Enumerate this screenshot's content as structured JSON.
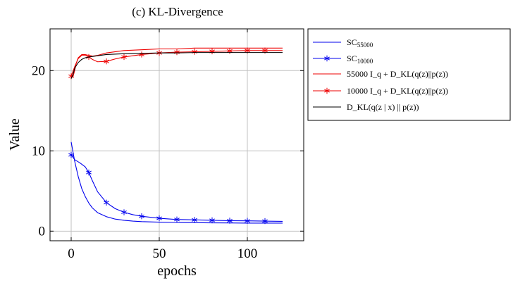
{
  "chart_data": {
    "type": "line",
    "title": "(c) KL-Divergence",
    "xlabel": "epochs",
    "ylabel": "Value",
    "xlim": [
      -12,
      132
    ],
    "ylim": [
      -1.2,
      25.2
    ],
    "xticks": [
      0,
      50,
      100
    ],
    "yticks": [
      0,
      10,
      20
    ],
    "grid": true,
    "legend_position": "outside-right",
    "series": [
      {
        "name": "SC55000",
        "legend_main": "SC",
        "legend_sub": "55000",
        "color": "#0000ee",
        "marker": "none",
        "x": [
          0,
          2,
          4,
          6,
          8,
          10,
          12,
          15,
          20,
          25,
          30,
          35,
          40,
          50,
          60,
          70,
          80,
          90,
          100,
          110,
          120
        ],
        "y": [
          11.1,
          8.7,
          6.8,
          5.3,
          4.3,
          3.5,
          2.9,
          2.3,
          1.8,
          1.5,
          1.35,
          1.25,
          1.18,
          1.12,
          1.08,
          1.05,
          1.03,
          1.02,
          1.0,
          1.0,
          1.0
        ]
      },
      {
        "name": "SC10000",
        "legend_main": "SC",
        "legend_sub": "10000",
        "color": "#0000ee",
        "marker": "asterisk",
        "x": [
          0,
          2,
          5,
          8,
          10,
          12,
          15,
          20,
          25,
          30,
          35,
          40,
          50,
          60,
          70,
          80,
          90,
          100,
          110,
          120
        ],
        "y": [
          9.5,
          8.9,
          8.5,
          8.0,
          7.3,
          6.3,
          4.9,
          3.55,
          2.8,
          2.35,
          2.05,
          1.85,
          1.6,
          1.45,
          1.4,
          1.35,
          1.3,
          1.28,
          1.25,
          1.22
        ],
        "marker_x": [
          0,
          10,
          20,
          30,
          40,
          50,
          60,
          70,
          80,
          90,
          100,
          110
        ],
        "marker_y": [
          9.5,
          7.3,
          3.55,
          2.35,
          1.85,
          1.6,
          1.45,
          1.4,
          1.35,
          1.3,
          1.28,
          1.25
        ]
      },
      {
        "name": "55000 I_q + D_KL(q(z)||p(z))",
        "legend_label": "55000  I_q + D_KL(q(z)||p(z))",
        "color": "#ee0000",
        "marker": "none",
        "x": [
          0,
          1,
          2,
          3,
          4,
          6,
          8,
          10,
          12,
          15,
          20,
          30,
          40,
          50,
          60,
          70,
          80,
          90,
          100,
          110,
          120
        ],
        "y": [
          19.5,
          19.2,
          20.0,
          21.0,
          21.6,
          22.0,
          22.0,
          21.9,
          21.8,
          21.9,
          22.2,
          22.5,
          22.6,
          22.7,
          22.7,
          22.8,
          22.8,
          22.8,
          22.8,
          22.8,
          22.8
        ]
      },
      {
        "name": "10000 I_q + D_KL(q(z)||p(z))",
        "legend_label": "10000  I_q + D_KL(q(z)||p(z))",
        "color": "#ee0000",
        "marker": "asterisk",
        "x": [
          0,
          2,
          4,
          6,
          8,
          10,
          12,
          15,
          20,
          25,
          30,
          40,
          50,
          60,
          70,
          80,
          90,
          100,
          110,
          120
        ],
        "y": [
          19.3,
          20.5,
          21.5,
          21.9,
          21.9,
          21.7,
          21.4,
          21.1,
          21.15,
          21.45,
          21.7,
          22.0,
          22.2,
          22.3,
          22.35,
          22.4,
          22.45,
          22.5,
          22.5,
          22.5
        ],
        "marker_x": [
          0,
          10,
          20,
          30,
          40,
          50,
          60,
          70,
          80,
          90,
          100,
          110
        ],
        "marker_y": [
          19.3,
          21.7,
          21.15,
          21.7,
          22.0,
          22.2,
          22.3,
          22.35,
          22.4,
          22.45,
          22.5,
          22.5
        ]
      },
      {
        "name": "D_KL(q(z | x) || p(z))",
        "legend_label": "D_KL(q(z | x) || p(z))",
        "color": "#000000",
        "marker": "none",
        "x": [
          0,
          1,
          2,
          4,
          6,
          8,
          10,
          15,
          20,
          30,
          40,
          50,
          60,
          70,
          80,
          90,
          100,
          110,
          120
        ],
        "y": [
          19.0,
          19.5,
          20.3,
          21.0,
          21.4,
          21.6,
          21.7,
          21.85,
          22.0,
          22.1,
          22.15,
          22.2,
          22.2,
          22.25,
          22.25,
          22.25,
          22.25,
          22.25,
          22.25
        ]
      }
    ]
  }
}
